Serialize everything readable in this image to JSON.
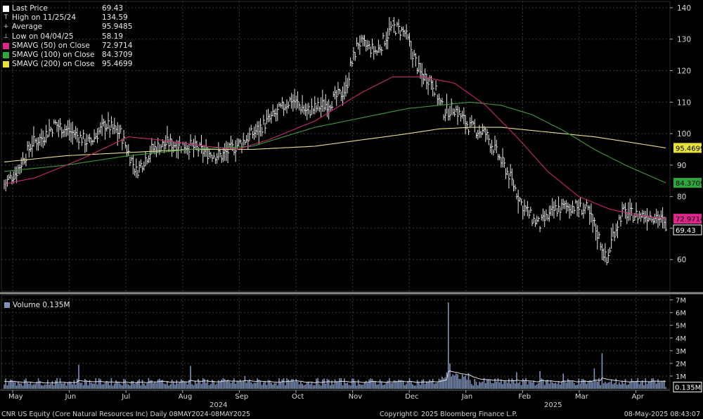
{
  "legend": [
    {
      "label": "Last Price",
      "value": "",
      "color": "#ffffff",
      "kind": "swatch"
    },
    {
      "label": "High on 11/25/24",
      "value": "134.59",
      "color": "",
      "kind": "glyph",
      "glyph": "T"
    },
    {
      "label": "Average",
      "value": "95.9485",
      "color": "",
      "kind": "glyph",
      "glyph": "+"
    },
    {
      "label": "Low on 04/04/25",
      "value": "58.19",
      "color": "",
      "kind": "glyph",
      "glyph": "⊥"
    },
    {
      "label": "SMAVG (50)  on Close",
      "value": "72.9714",
      "color": "#e0268e",
      "kind": "swatch"
    },
    {
      "label": "SMAVG (100)  on Close",
      "value": "84.3709",
      "color": "#2ea83a",
      "kind": "swatch"
    },
    {
      "label": "SMAVG (200)  on Close",
      "value": "95.4699",
      "color": "#e8e23a",
      "kind": "swatch"
    }
  ],
  "last_price_value": "69.43",
  "volume_legend": "Volume  0.135M",
  "footer": {
    "left": "CNR US Equity (Core Natural Resources Inc)  Daily 08MAY2024-08MAY2025",
    "center": "Copyright© 2025 Bloomberg Finance L.P.",
    "right": "08-May-2025 08:43:07"
  },
  "years": {
    "y2024": "2024",
    "y2025": "2025"
  },
  "chart_data": {
    "type": "line",
    "title": "",
    "x_labels": [
      "May",
      "Jun",
      "Jul",
      "Aug",
      "Sep",
      "Oct",
      "Nov",
      "Dec",
      "Jan",
      "Feb",
      "Mar",
      "Apr"
    ],
    "y_ticks": [
      60,
      70,
      80,
      90,
      100,
      110,
      120,
      130,
      140
    ],
    "ylim": [
      50,
      142
    ],
    "volume_ticks": [
      "1M",
      "2M",
      "3M",
      "4M",
      "5M",
      "6M",
      "7M"
    ],
    "volume_ylim": [
      0,
      7.2
    ],
    "price_anchors": [
      [
        0,
        84
      ],
      [
        8,
        88
      ],
      [
        18,
        97
      ],
      [
        25,
        99
      ],
      [
        33,
        103
      ],
      [
        45,
        100
      ],
      [
        55,
        97
      ],
      [
        65,
        103
      ],
      [
        75,
        100
      ],
      [
        85,
        88
      ],
      [
        95,
        95
      ],
      [
        105,
        97
      ],
      [
        120,
        96
      ],
      [
        130,
        94
      ],
      [
        140,
        93
      ],
      [
        155,
        98
      ],
      [
        170,
        104
      ],
      [
        185,
        111
      ],
      [
        195,
        107
      ],
      [
        210,
        110
      ],
      [
        220,
        114
      ],
      [
        223,
        121
      ],
      [
        228,
        129
      ],
      [
        240,
        126
      ],
      [
        250,
        134
      ],
      [
        258,
        132
      ],
      [
        268,
        119
      ],
      [
        275,
        117
      ],
      [
        283,
        107
      ],
      [
        290,
        108
      ],
      [
        300,
        102
      ],
      [
        310,
        100
      ],
      [
        318,
        93
      ],
      [
        325,
        87
      ],
      [
        333,
        78
      ],
      [
        340,
        73
      ],
      [
        345,
        71
      ],
      [
        355,
        76
      ],
      [
        365,
        77
      ],
      [
        375,
        76
      ],
      [
        380,
        71
      ],
      [
        385,
        64
      ],
      [
        388,
        59
      ],
      [
        392,
        68
      ],
      [
        398,
        75
      ],
      [
        408,
        74
      ],
      [
        420,
        74
      ],
      [
        424,
        72
      ],
      [
        426,
        69.43
      ]
    ],
    "n_days": 427,
    "high": {
      "index": 250,
      "value": 134.59
    },
    "low": {
      "index": 388,
      "value": 58.19
    },
    "sma50_anchors": [
      [
        0,
        84
      ],
      [
        20,
        86
      ],
      [
        50,
        92
      ],
      [
        80,
        99
      ],
      [
        100,
        98
      ],
      [
        130,
        96
      ],
      [
        150,
        95
      ],
      [
        170,
        98
      ],
      [
        200,
        104
      ],
      [
        230,
        113
      ],
      [
        250,
        118
      ],
      [
        270,
        118
      ],
      [
        290,
        116
      ],
      [
        310,
        109
      ],
      [
        330,
        99
      ],
      [
        350,
        88
      ],
      [
        370,
        80
      ],
      [
        390,
        76
      ],
      [
        410,
        74
      ],
      [
        426,
        72.97
      ]
    ],
    "sma100_anchors": [
      [
        0,
        88
      ],
      [
        40,
        90
      ],
      [
        80,
        93
      ],
      [
        120,
        95
      ],
      [
        160,
        96
      ],
      [
        200,
        102
      ],
      [
        240,
        106
      ],
      [
        260,
        108
      ],
      [
        280,
        109
      ],
      [
        300,
        110
      ],
      [
        320,
        109
      ],
      [
        340,
        106
      ],
      [
        360,
        101
      ],
      [
        380,
        95
      ],
      [
        400,
        90
      ],
      [
        426,
        84.37
      ]
    ],
    "sma200_anchors": [
      [
        0,
        91
      ],
      [
        40,
        93
      ],
      [
        80,
        94
      ],
      [
        120,
        95
      ],
      [
        160,
        95
      ],
      [
        200,
        96
      ],
      [
        230,
        98
      ],
      [
        260,
        100
      ],
      [
        280,
        101.5
      ],
      [
        300,
        102
      ],
      [
        320,
        102
      ],
      [
        340,
        101
      ],
      [
        360,
        100
      ],
      [
        380,
        99
      ],
      [
        400,
        97.5
      ],
      [
        426,
        95.47
      ]
    ],
    "volume_spikes": [
      {
        "index": 48,
        "value": 1.9
      },
      {
        "index": 120,
        "value": 1.8
      },
      {
        "index": 155,
        "value": 1.0
      },
      {
        "index": 285,
        "value": 1.3
      },
      {
        "index": 286,
        "value": 6.8
      },
      {
        "index": 287,
        "value": 2.0
      },
      {
        "index": 330,
        "value": 1.3
      },
      {
        "index": 345,
        "value": 1.4
      },
      {
        "index": 360,
        "value": 1.2
      },
      {
        "index": 385,
        "value": 2.8
      },
      {
        "index": 380,
        "value": 1.6
      }
    ],
    "price_labels": [
      {
        "value": 95.4699,
        "text": "95.4699",
        "color": "#e8e23a"
      },
      {
        "value": 84.3709,
        "text": "84.3709",
        "color": "#2ea83a"
      },
      {
        "value": 72.9714,
        "text": "72.9714",
        "color": "#e0268e"
      },
      {
        "value": 69.43,
        "text": "69.43",
        "color": "#ffffff"
      }
    ],
    "volume_label": {
      "value": 0.135,
      "text": "0.135M"
    },
    "colors": {
      "price": "#e6e6e6",
      "sma50": "#c8286f",
      "sma100": "#3f9a3c",
      "sma200": "#e8e08a",
      "volume": "#8093bd",
      "volume_avg": "#e0e0e0",
      "grid": "#3a3a3a"
    }
  }
}
